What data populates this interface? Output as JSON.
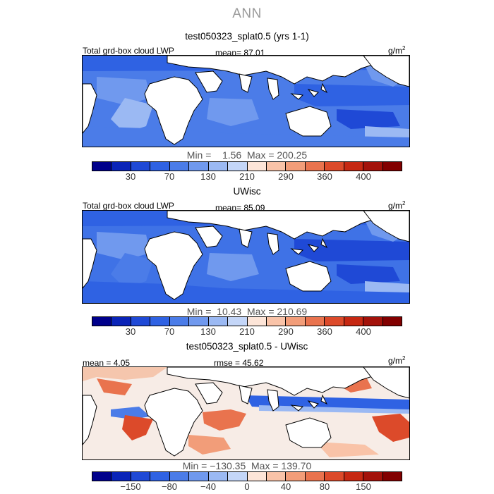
{
  "title": "ANN",
  "panels": [
    {
      "title": "test050323_splat0.5 (yrs 1-1)",
      "variable": "Total grd-box cloud LWP",
      "stat": "mean=  87.01",
      "units": "g/m",
      "units_exp": "2",
      "minmax": "Min =    1.56  Max = 200.25",
      "map_style": "model1"
    },
    {
      "title": "UWisc",
      "variable": "Total grd-box cloud LWP",
      "stat": "mean=  85.09",
      "units": "g/m",
      "units_exp": "2",
      "minmax": "Min =  10.43  Max = 210.69",
      "map_style": "obs"
    },
    {
      "title": "test050323_splat0.5 - UWisc",
      "variable": "mean =   4.05",
      "stat": "rmse =  45.62",
      "units": "g/m",
      "units_exp": "2",
      "minmax": "Min = −130.35  Max = 139.70",
      "map_style": "diff"
    }
  ],
  "colorbars": {
    "lwp": {
      "colors": [
        "#00008b",
        "#0a24b8",
        "#1f49d6",
        "#2f62e3",
        "#4b7ce8",
        "#7099ee",
        "#9bb9f3",
        "#c4d6f8",
        "#fde5d8",
        "#f9c3a8",
        "#f29d79",
        "#e9734e",
        "#dc4a2a",
        "#c62812",
        "#a3120a",
        "#820000"
      ],
      "ticks": [
        "30",
        "70",
        "130",
        "210",
        "290",
        "360",
        "400"
      ]
    },
    "diff": {
      "colors": [
        "#00008b",
        "#0a24b8",
        "#1f49d6",
        "#2f62e3",
        "#4b7ce8",
        "#7099ee",
        "#9bb9f3",
        "#c4d6f8",
        "#fde5d8",
        "#f9c3a8",
        "#f29d79",
        "#e9734e",
        "#dc4a2a",
        "#c62812",
        "#a3120a",
        "#820000"
      ],
      "ticks": [
        "−150",
        "−80",
        "−40",
        "0",
        "40",
        "80",
        "150"
      ]
    }
  }
}
